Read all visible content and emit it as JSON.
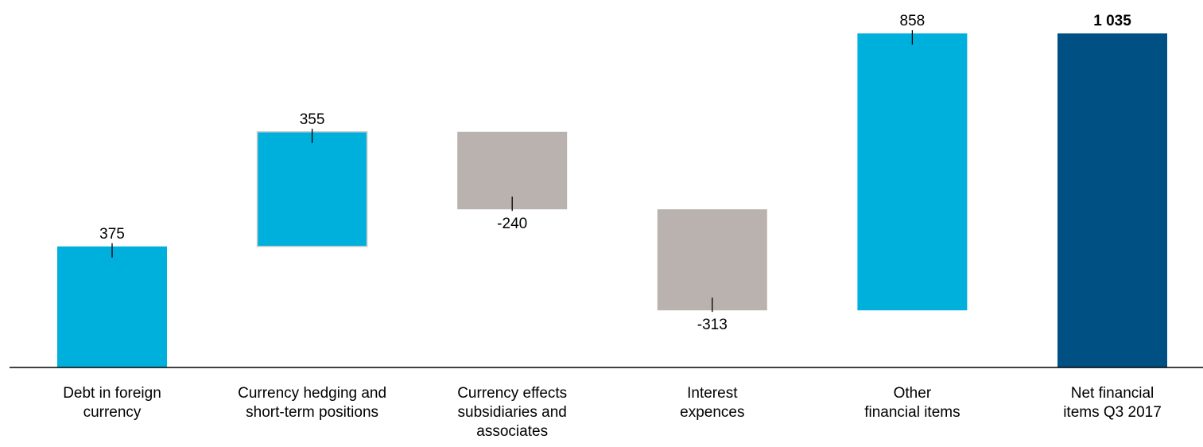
{
  "chart_data": {
    "type": "bar",
    "subtype": "waterfall",
    "categories": [
      [
        "Debt in foreign",
        "currency"
      ],
      [
        "Currency hedging and",
        "short-term positions"
      ],
      [
        "Currency effects",
        "subsidiaries and",
        "associates"
      ],
      [
        "Interest",
        "expences"
      ],
      [
        "Other",
        "financial items"
      ],
      [
        "Net financial",
        "items Q3 2017"
      ]
    ],
    "values": [
      375,
      355,
      -240,
      -313,
      858,
      1035
    ],
    "value_labels": [
      "375",
      "355",
      "-240",
      "-313",
      "858",
      "1 035"
    ],
    "is_total": [
      false,
      false,
      false,
      false,
      false,
      true
    ],
    "colors": {
      "increase": "#00b0dc",
      "decrease": "#bab2ae",
      "total": "#005084",
      "axis": "#000000",
      "bar_border": "#c8c8c8"
    },
    "ylim": [
      0,
      1035
    ],
    "grid": false,
    "legend": "none"
  }
}
